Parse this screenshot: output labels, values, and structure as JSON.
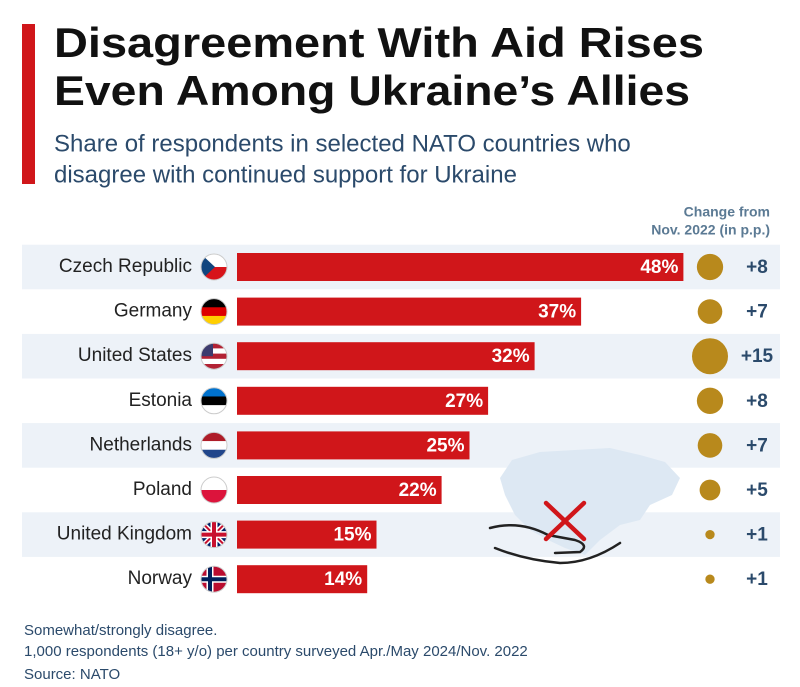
{
  "chart_data": {
    "type": "bar",
    "title": [
      "Disagreement With Aid Rises",
      "Even Among Ukraine’s Allies"
    ],
    "subtitle": [
      "Share of respondents in selected NATO countries who",
      "disagree with continued support for Ukraine"
    ],
    "categories": [
      "Czech Republic",
      "Germany",
      "United States",
      "Estonia",
      "Netherlands",
      "Poland",
      "United Kingdom",
      "Norway"
    ],
    "values": [
      48,
      37,
      32,
      27,
      25,
      22,
      15,
      14
    ],
    "value_labels": [
      "48%",
      "37%",
      "32%",
      "27%",
      "25%",
      "22%",
      "15%",
      "14%"
    ],
    "color": "#d0161a",
    "change_header": [
      "Change from",
      "Nov. 2022 (in p.p.)"
    ],
    "change_values": [
      8,
      7,
      15,
      8,
      7,
      5,
      1,
      1
    ],
    "change_labels": [
      "+8",
      "+7",
      "+15",
      "+8",
      "+7",
      "+5",
      "+1",
      "+1"
    ],
    "change_color": "#b8891c",
    "notes": [
      "Somewhat/strongly disagree.",
      "1,000 respondents (18+ y/o) per country surveyed Apr./May 2024/Nov. 2022"
    ],
    "source": "Source: NATO"
  }
}
